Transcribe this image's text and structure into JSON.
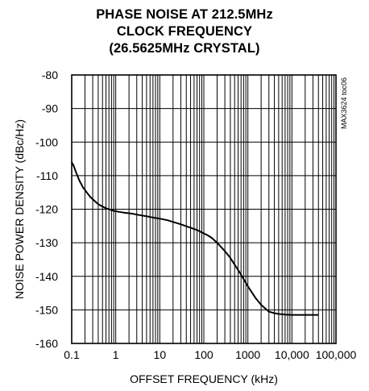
{
  "chart_data": {
    "type": "line",
    "title": [
      "PHASE NOISE AT 212.5MHz",
      "CLOCK FREQUENCY",
      "(26.5625MHz CRYSTAL)"
    ],
    "xlabel": "OFFSET FREQUENCY (kHz)",
    "ylabel": "NOISE POWER DENSITY (dBc/Hz)",
    "annotation": "MAX3624 toc06",
    "x_scale": "log",
    "xlim": [
      0.1,
      100000
    ],
    "ylim": [
      -160,
      -80
    ],
    "x_ticks": [
      0.1,
      1,
      10,
      100,
      1000,
      10000,
      100000
    ],
    "x_tick_labels": [
      "0.1",
      "1",
      "10",
      "100",
      "1000",
      "10,000",
      "100,000"
    ],
    "y_ticks": [
      -80,
      -90,
      -100,
      -110,
      -120,
      -130,
      -140,
      -150,
      -160
    ],
    "y_tick_labels": [
      "-80",
      "-90",
      "-100",
      "-110",
      "-120",
      "-130",
      "-140",
      "-150",
      "-160"
    ],
    "grid": true,
    "legend": "none",
    "line_color": "#000000",
    "series": [
      {
        "x": [
          0.1,
          0.11,
          0.13,
          0.15,
          0.18,
          0.22,
          0.27,
          0.33,
          0.4,
          0.5,
          0.6,
          0.7,
          0.8,
          0.9,
          1,
          1.2,
          1.5,
          2,
          2.5,
          3,
          4,
          5,
          7,
          10,
          15,
          20,
          30,
          40,
          50,
          70,
          100,
          120,
          150,
          200,
          300,
          400,
          500,
          700,
          1000,
          1500,
          2000,
          3000,
          4000,
          5000,
          7000,
          10000,
          15000,
          20000,
          30000,
          40000
        ],
        "y": [
          -106,
          -107,
          -109.5,
          -111.5,
          -113.5,
          -115,
          -116.5,
          -117.5,
          -118.5,
          -119.2,
          -119.7,
          -120,
          -120.3,
          -120.5,
          -120.6,
          -120.8,
          -121,
          -121.2,
          -121.4,
          -121.6,
          -121.9,
          -122.1,
          -122.5,
          -122.8,
          -123.3,
          -123.8,
          -124.5,
          -125.1,
          -125.5,
          -126.2,
          -127.2,
          -127.7,
          -128.5,
          -130,
          -132.5,
          -134.5,
          -136.5,
          -139.5,
          -143,
          -146.5,
          -148.5,
          -150.5,
          -151,
          -151.2,
          -151.4,
          -151.5,
          -151.5,
          -151.5,
          -151.5,
          -151.5
        ]
      }
    ]
  }
}
